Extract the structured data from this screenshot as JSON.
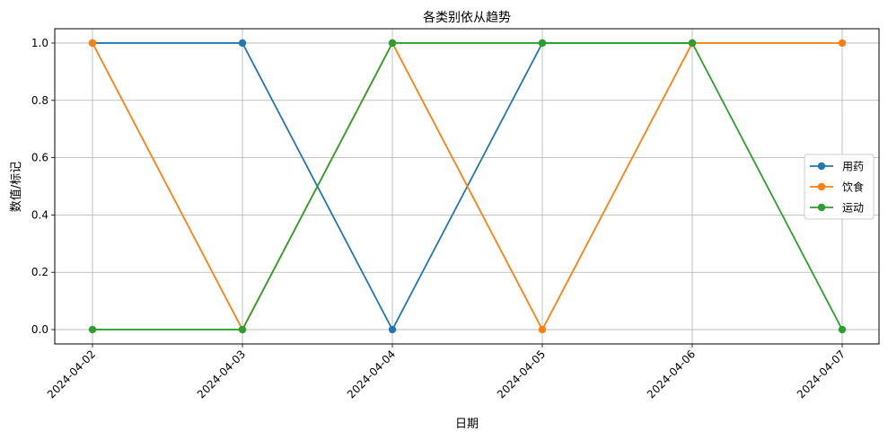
{
  "chart_data": {
    "type": "line",
    "title": "各类别依从趋势",
    "xlabel": "日期",
    "ylabel": "数值/标记",
    "categories": [
      "2024-04-02",
      "2024-04-03",
      "2024-04-04",
      "2024-04-05",
      "2024-04-06",
      "2024-04-07"
    ],
    "series": [
      {
        "name": "用药",
        "color": "#1f77b4",
        "values": [
          1,
          1,
          0,
          1,
          1,
          null
        ]
      },
      {
        "name": "饮食",
        "color": "#ff7f0e",
        "values": [
          1,
          0,
          1,
          0,
          1,
          1
        ]
      },
      {
        "name": "运动",
        "color": "#2ca02c",
        "values": [
          0,
          0,
          1,
          1,
          1,
          0
        ]
      }
    ],
    "ylim": [
      -0.05,
      1.05
    ],
    "yticks": [
      "0.0",
      "0.2",
      "0.4",
      "0.6",
      "0.8",
      "1.0"
    ],
    "grid": true,
    "legend_position": "center-right",
    "marker": "circle"
  }
}
